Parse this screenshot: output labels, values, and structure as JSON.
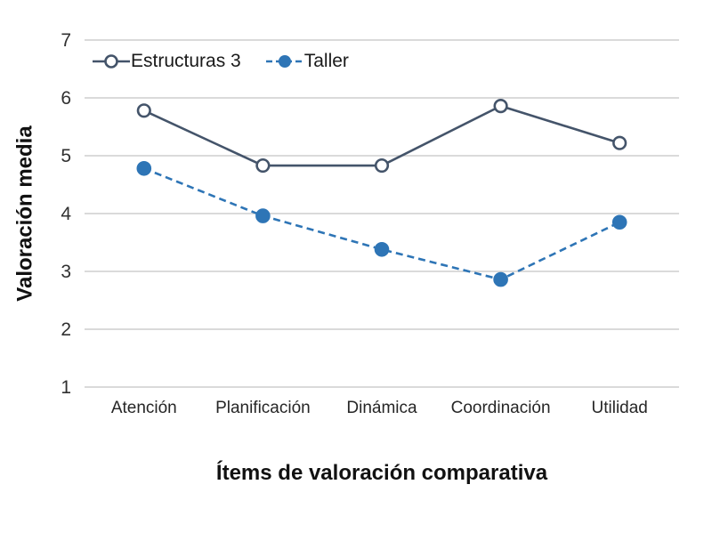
{
  "chart_data": {
    "type": "line",
    "categories": [
      "Atención",
      "Planificación",
      "Dinámica",
      "Coordinación",
      "Utilidad"
    ],
    "series": [
      {
        "name": "Estructuras 3",
        "values": [
          5.78,
          4.83,
          4.83,
          5.86,
          5.22
        ],
        "color": "#44546a",
        "marker": "open",
        "line_style": "solid"
      },
      {
        "name": "Taller",
        "values": [
          4.78,
          3.96,
          3.38,
          2.86,
          3.85
        ],
        "color": "#2e75b6",
        "marker": "filled",
        "line_style": "dashed"
      }
    ],
    "title": "",
    "xlabel": "Ítems de valoración comparativa",
    "ylabel": "Valoración media",
    "ylim": [
      1,
      7
    ],
    "ytick_step": 1,
    "yticks": [
      1,
      2,
      3,
      4,
      5,
      6,
      7
    ],
    "grid": true,
    "grid_color": "#c3c3c3",
    "legend_position": "top-left-inside",
    "background_color": "#ffffff",
    "marker_open_fill": "#ffffff"
  }
}
